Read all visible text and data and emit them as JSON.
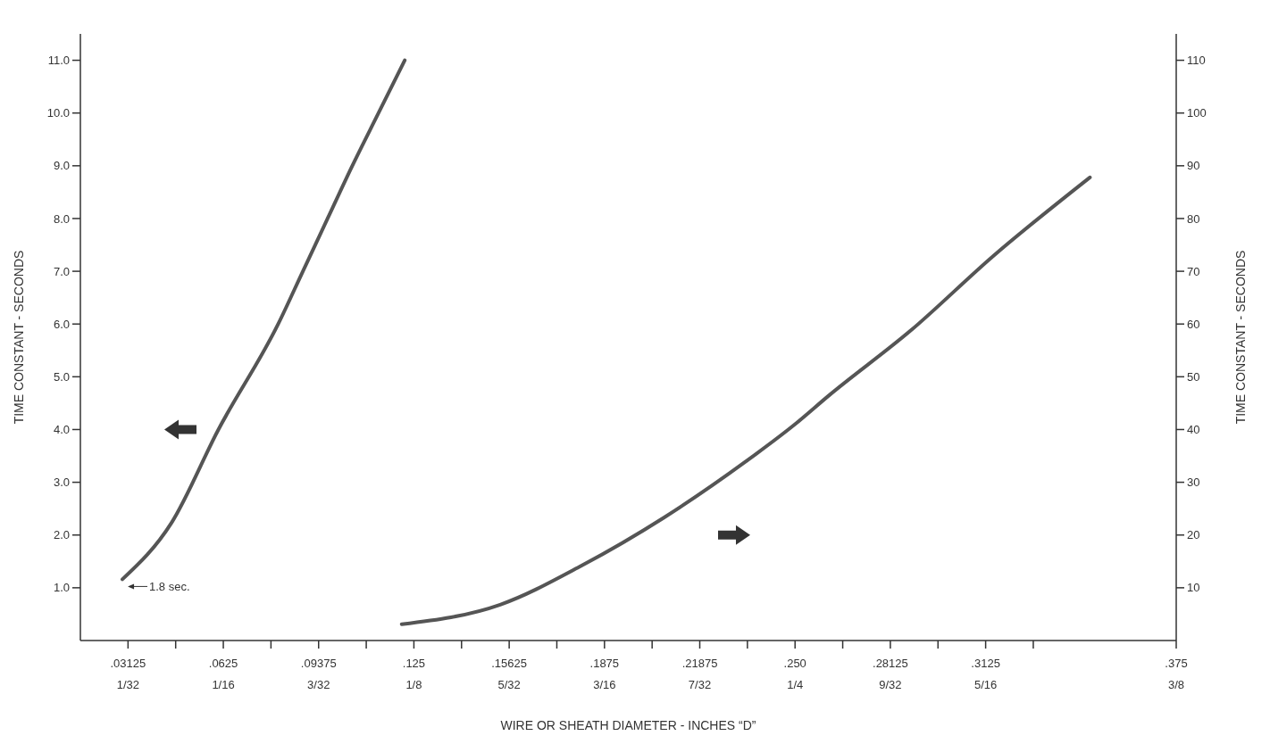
{
  "chart_data": {
    "type": "line",
    "xlabel": "WIRE OR SHEATH DIAMETER - INCHES “D”",
    "ylabel": "TIME CONSTANT - SECONDS",
    "y2label": "TIME CONSTANT - SECONDS",
    "xlim": [
      0.015625,
      0.375
    ],
    "xticks": [
      {
        "value": 0.03125,
        "label": ".03125"
      },
      {
        "value": 0.046875,
        "label": null
      },
      {
        "value": 0.0625,
        "label": ".0625"
      },
      {
        "value": 0.078125,
        "label": null
      },
      {
        "value": 0.09375,
        "label": ".09375"
      },
      {
        "value": 0.109375,
        "label": null
      },
      {
        "value": 0.125,
        "label": ".125"
      },
      {
        "value": 0.140625,
        "label": null
      },
      {
        "value": 0.15625,
        "label": ".15625"
      },
      {
        "value": 0.171875,
        "label": null
      },
      {
        "value": 0.1875,
        "label": ".1875"
      },
      {
        "value": 0.203125,
        "label": null
      },
      {
        "value": 0.21875,
        "label": ".21875"
      },
      {
        "value": 0.234375,
        "label": null
      },
      {
        "value": 0.25,
        "label": ".250"
      },
      {
        "value": 0.265625,
        "label": null
      },
      {
        "value": 0.28125,
        "label": ".28125"
      },
      {
        "value": 0.296875,
        "label": null
      },
      {
        "value": 0.3125,
        "label": ".3125"
      },
      {
        "value": 0.328125,
        "label": null
      },
      {
        "value": 0.375,
        "label": ".375"
      }
    ],
    "x2lim": [
      0.015625,
      0.375
    ],
    "x2ticks": [
      {
        "value": 0.03125,
        "label": "1/32"
      },
      {
        "value": 0.0625,
        "label": "1/16"
      },
      {
        "value": 0.09375,
        "label": "3/32"
      },
      {
        "value": 0.125,
        "label": "1/8"
      },
      {
        "value": 0.15625,
        "label": "5/32"
      },
      {
        "value": 0.1875,
        "label": "3/16"
      },
      {
        "value": 0.21875,
        "label": "7/32"
      },
      {
        "value": 0.25,
        "label": "1/4"
      },
      {
        "value": 0.28125,
        "label": "9/32"
      },
      {
        "value": 0.3125,
        "label": "5/16"
      },
      {
        "value": 0.375,
        "label": "3/8"
      }
    ],
    "ylim": [
      0,
      11.5
    ],
    "yticks": [
      {
        "value": 1,
        "label": "1.0"
      },
      {
        "value": 2,
        "label": "2.0"
      },
      {
        "value": 3,
        "label": "3.0"
      },
      {
        "value": 4,
        "label": "4.0"
      },
      {
        "value": 5,
        "label": "5.0"
      },
      {
        "value": 6,
        "label": "6.0"
      },
      {
        "value": 7,
        "label": "7.0"
      },
      {
        "value": 8,
        "label": "8.0"
      },
      {
        "value": 9,
        "label": "9.0"
      },
      {
        "value": 10,
        "label": "10.0"
      },
      {
        "value": 11,
        "label": "11.0"
      }
    ],
    "y2lim": [
      0,
      115
    ],
    "y2ticks": [
      10,
      20,
      30,
      40,
      50,
      60,
      70,
      80,
      90,
      100,
      110
    ],
    "grid": false,
    "line_style": "solid",
    "marker": "none",
    "annotations": [
      {
        "text": "1.8 sec.",
        "x": 0.0294,
        "y": 1.16
      }
    ],
    "series": [
      {
        "color": "#555555",
        "axis": "y",
        "x": [
          0.0294,
          0.0455,
          0.0609,
          0.0805,
          0.0886,
          0.0967,
          0.1048,
          0.1134,
          0.122
        ],
        "values": [
          1.16,
          2.23,
          4.0,
          6.0,
          7.0,
          8.0,
          9.0,
          10.0,
          11.0
        ]
      },
      {
        "color": "#555555",
        "axis": "y2",
        "x": [
          0.121,
          0.1533,
          0.18,
          0.207,
          0.234,
          0.25,
          0.261,
          0.288,
          0.315,
          0.3467
        ],
        "values": [
          3.1,
          6.8,
          14.2,
          23.3,
          34,
          41,
          46.4,
          58.8,
          72.9,
          87.8
        ]
      }
    ]
  }
}
